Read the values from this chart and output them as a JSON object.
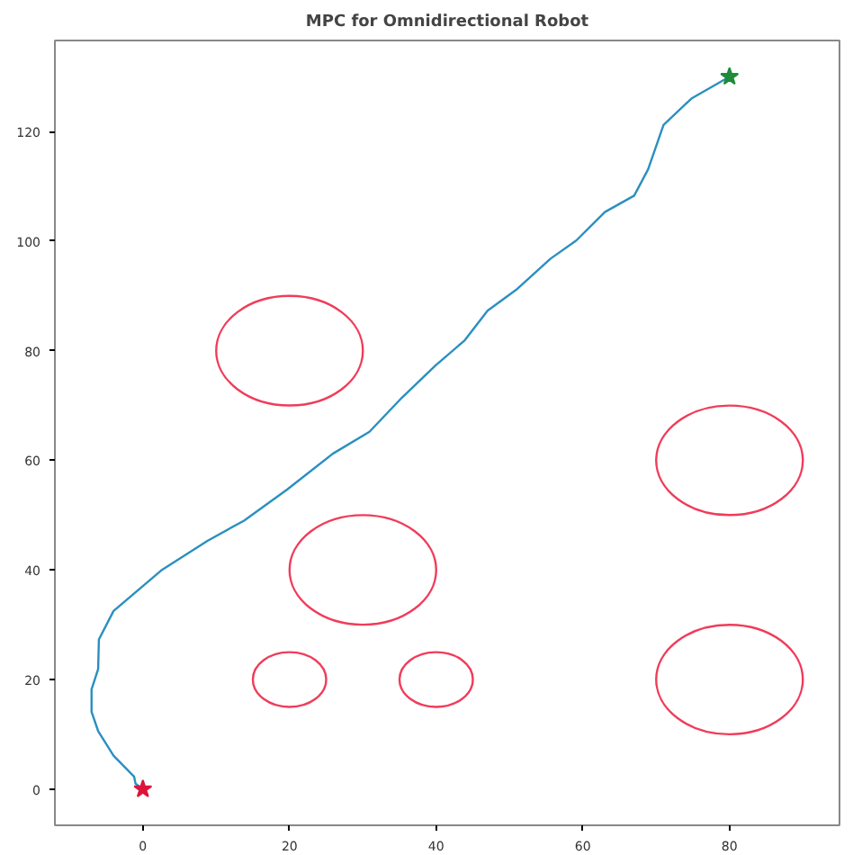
{
  "chart_data": {
    "type": "line",
    "title": "MPC for Omnidirectional Robot",
    "xlim": [
      -12,
      95
    ],
    "ylim": [
      -6.6,
      136.6
    ],
    "xticks": [
      0,
      20,
      40,
      60,
      80
    ],
    "yticks": [
      0,
      20,
      40,
      60,
      80,
      100,
      120
    ],
    "grid": false,
    "marker": "none",
    "line_style": "solid",
    "series": [
      {
        "color": "#2a8fc0",
        "x": [
          0,
          -1.0,
          -1.2,
          -4.0,
          -6.1,
          -7.0,
          -7.0,
          -6.1,
          -6.0,
          -4.0,
          2.5,
          8.8,
          13.8,
          19.7,
          25.9,
          30.9,
          35.3,
          39.9,
          43.9,
          47.0,
          50.9,
          55.6,
          59.1,
          63.0,
          67.0,
          68.9,
          71.0,
          74.8,
          80
        ],
        "values": [
          0,
          1.0,
          2.3,
          6.1,
          10.6,
          14.1,
          18.2,
          21.9,
          27.3,
          32.5,
          39.9,
          45.3,
          49.0,
          54.7,
          61.2,
          65.2,
          71.4,
          77.3,
          81.9,
          87.3,
          91.1,
          96.8,
          100.1,
          105.3,
          108.3,
          113.1,
          121.2,
          126.0,
          130
        ]
      },
      {
        "type": "scatter",
        "marker": "star",
        "color": "#dc143c",
        "x": [
          0
        ],
        "values": [
          0
        ]
      },
      {
        "type": "scatter",
        "marker": "star",
        "color": "#1e8c3a",
        "x": [
          80
        ],
        "values": [
          130
        ]
      }
    ]
  }
}
